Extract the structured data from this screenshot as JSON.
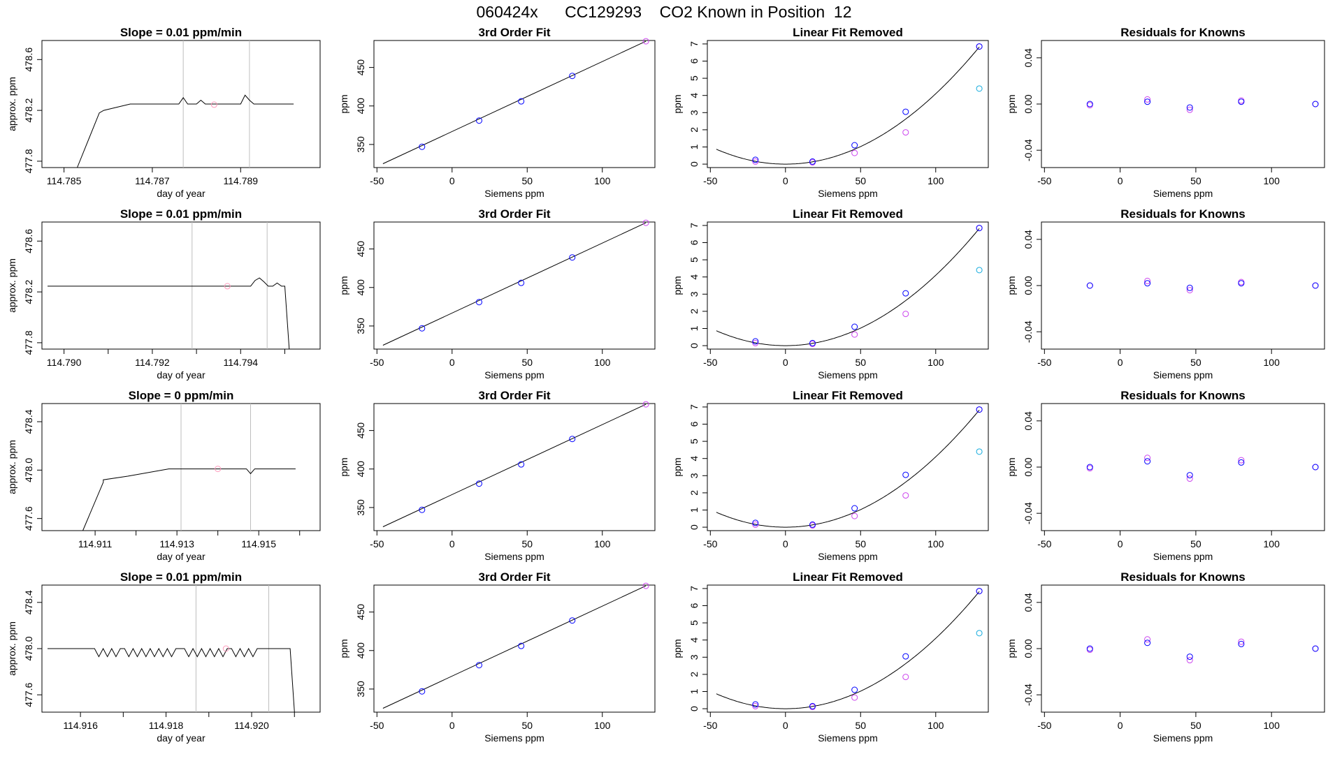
{
  "figure": {
    "title": "060424x      CC129293    CO2 Known in Position  12"
  },
  "colors": {
    "axes": "#000000",
    "trace": "#000000",
    "vline": "#bebebe",
    "blue": "#0000ff",
    "magenta": "#cc44ee",
    "cyan": "#11aadd",
    "pink": "#ff99bb"
  },
  "chart_data": [
    {
      "type": "line",
      "row": 0,
      "title": "Slope =  0.01  ppm/min",
      "xlabel": "day of year",
      "ylabel": "approx. ppm",
      "xlim": [
        114.7845,
        114.7908
      ],
      "ylim": [
        477.75,
        478.75
      ],
      "xticks": [
        114.785,
        114.787,
        114.789
      ],
      "xtick_labels": [
        "114.785",
        "114.787",
        "114.789"
      ],
      "yticks": [
        477.8,
        478.2,
        478.6
      ],
      "ytick_labels": [
        "477.8",
        "478.2",
        "478.6"
      ],
      "vlines": [
        114.7877,
        114.7892
      ],
      "marker_point": [
        114.7884,
        478.245
      ],
      "baseline": 478.25,
      "rise": {
        "start": 114.7853,
        "start_y": 477.75,
        "end": 114.7858,
        "end_y": 478.18
      },
      "steps": [
        [
          114.7858,
          478.18
        ],
        [
          114.7859,
          478.2
        ],
        [
          114.7865,
          478.25
        ]
      ],
      "spikes": [
        [
          114.7862,
          478.27
        ],
        [
          114.7864,
          478.28
        ],
        [
          114.7877,
          478.3
        ],
        [
          114.7881,
          478.28
        ],
        [
          114.7891,
          478.32
        ],
        [
          114.7892,
          478.28
        ]
      ],
      "end": 114.7903
    },
    {
      "type": "line",
      "row": 1,
      "title": "Slope =  0.01  ppm/min",
      "xlabel": "day of year",
      "ylabel": "approx. ppm",
      "xlim": [
        114.7895,
        114.7958
      ],
      "ylim": [
        477.75,
        478.75
      ],
      "xticks": [
        114.79,
        114.791,
        114.792,
        114.793,
        114.794,
        114.795
      ],
      "xtick_labels": [
        "114.790",
        "",
        "114.792",
        "",
        "114.794",
        ""
      ],
      "yticks": [
        477.8,
        478.2,
        478.6
      ],
      "ytick_labels": [
        "477.8",
        "478.2",
        "478.6"
      ],
      "vlines": [
        114.7929,
        114.7946
      ],
      "marker_point": [
        114.7937,
        478.245
      ],
      "baseline": 478.245,
      "rise": null,
      "steps": [],
      "spikes": [
        [
          114.7943,
          478.29
        ],
        [
          114.7944,
          478.31
        ],
        [
          114.7945,
          478.28
        ],
        [
          114.7948,
          478.27
        ]
      ],
      "end": 114.795,
      "drop": {
        "x": 114.7951,
        "y": 477.75
      }
    },
    {
      "type": "line",
      "row": 2,
      "title": "Slope =  0  ppm/min",
      "xlabel": "day of year",
      "ylabel": "approx. ppm",
      "xlim": [
        114.9097,
        114.9165
      ],
      "ylim": [
        477.5,
        478.55
      ],
      "xticks": [
        114.911,
        114.912,
        114.913,
        114.914,
        114.915,
        114.916
      ],
      "xtick_labels": [
        "114.911",
        "",
        "114.913",
        "",
        "114.915",
        ""
      ],
      "yticks": [
        477.6,
        478.0,
        478.4
      ],
      "ytick_labels": [
        "477.6",
        "478.0",
        "478.4"
      ],
      "vlines": [
        114.9131,
        114.9148
      ],
      "marker_point": [
        114.914,
        478.01
      ],
      "baseline": 478.01,
      "rise": {
        "start": 114.9107,
        "start_y": 477.5,
        "end": 114.9112,
        "end_y": 477.9
      },
      "steps": [
        [
          114.9112,
          477.92
        ],
        [
          114.9118,
          477.95
        ],
        [
          114.9128,
          478.01
        ]
      ],
      "spikes": [
        [
          114.912,
          478.01
        ],
        [
          114.9123,
          477.98
        ],
        [
          114.9125,
          478.0
        ],
        [
          114.9127,
          477.98
        ],
        [
          114.9148,
          477.97
        ]
      ],
      "end": 114.916
    },
    {
      "type": "line",
      "row": 3,
      "title": "Slope =  0.01  ppm/min",
      "xlabel": "day of year",
      "ylabel": "approx. ppm",
      "xlim": [
        114.9151,
        114.9216
      ],
      "ylim": [
        477.45,
        478.55
      ],
      "xticks": [
        114.916,
        114.917,
        114.918,
        114.919,
        114.92,
        114.921
      ],
      "xtick_labels": [
        "114.916",
        "",
        "114.918",
        "",
        "114.920",
        ""
      ],
      "yticks": [
        477.6,
        478.0,
        478.4
      ],
      "ytick_labels": [
        "477.6",
        "478.0",
        "478.4"
      ],
      "vlines": [
        114.9187,
        114.9204
      ],
      "marker_point": [
        114.9194,
        478.0
      ],
      "baseline": 478.0,
      "rise": null,
      "steps": [],
      "dips": [
        114.9164,
        114.9166,
        114.9168,
        114.9171,
        114.9173,
        114.9175,
        114.9177,
        114.9179,
        114.9181,
        114.9185,
        114.9187,
        114.9189,
        114.9191,
        114.9193,
        114.9196,
        114.9198,
        114.92
      ],
      "dip_depth": 477.93,
      "spikes": [],
      "end": 114.9208,
      "drop": {
        "x": 114.921,
        "y": 477.45
      }
    }
  ],
  "fit_data": {
    "type": "scatter",
    "title": "3rd Order Fit",
    "xlabel": "Siemens ppm",
    "ylabel": "ppm",
    "xlim": [
      -52,
      135
    ],
    "ylim": [
      320,
      485
    ],
    "xticks": [
      -50,
      0,
      50,
      100
    ],
    "xtick_labels": [
      "-50",
      "0",
      "50",
      "100"
    ],
    "yticks": [
      350,
      400,
      450
    ],
    "ytick_labels": [
      "350",
      "400",
      "450"
    ],
    "points_x": [
      -20,
      18,
      46,
      80,
      129
    ],
    "points_y": [
      347,
      381,
      406,
      439,
      484
    ],
    "line": [
      [
        -46,
        325
      ],
      [
        129,
        484
      ]
    ]
  },
  "linfit_data": {
    "type": "scatter",
    "title": "Linear Fit Removed",
    "xlabel": "Siemens ppm",
    "ylabel": "ppm",
    "xlim": [
      -52,
      135
    ],
    "ylim": [
      -0.2,
      7.2
    ],
    "xticks": [
      -50,
      0,
      50,
      100
    ],
    "xtick_labels": [
      "-50",
      "0",
      "50",
      "100"
    ],
    "yticks": [
      0,
      1,
      2,
      3,
      4,
      5,
      6,
      7
    ],
    "ytick_labels": [
      "0",
      "1",
      "2",
      "3",
      "4",
      "5",
      "6",
      "7"
    ],
    "blue_x": [
      -20,
      18,
      46,
      80,
      129
    ],
    "blue_y": [
      0.25,
      0.15,
      1.1,
      3.05,
      6.85
    ],
    "magenta_x": [
      -20,
      18,
      46,
      80,
      129
    ],
    "magenta_y": [
      0.15,
      0.1,
      0.65,
      1.85,
      6.85
    ],
    "cyan_x": [
      129
    ],
    "cyan_y": [
      4.4
    ],
    "curve_coef": 0.00041
  },
  "resid_data": {
    "type": "scatter",
    "title": "Residuals for Knowns",
    "xlabel": "Siemens ppm",
    "ylabel": "ppm",
    "xlim": [
      -52,
      135
    ],
    "ylim": [
      -0.055,
      0.055
    ],
    "xticks": [
      -50,
      0,
      50,
      100
    ],
    "xtick_labels": [
      "-50",
      "0",
      "50",
      "100"
    ],
    "yticks": [
      -0.04,
      0.0,
      0.04
    ],
    "ytick_labels": [
      "-0.04",
      "0.00",
      "0.04"
    ],
    "rows": [
      {
        "x": [
          -20,
          18,
          46,
          80,
          129
        ],
        "blue": [
          0.0,
          0.002,
          -0.003,
          0.002,
          0.0
        ],
        "magenta": [
          -0.001,
          0.004,
          -0.005,
          0.003,
          0.0
        ]
      },
      {
        "x": [
          -20,
          18,
          46,
          80,
          129
        ],
        "blue": [
          0.0,
          0.002,
          -0.002,
          0.002,
          0.0
        ],
        "magenta": [
          0.0,
          0.004,
          -0.004,
          0.003,
          0.0
        ]
      },
      {
        "x": [
          -20,
          18,
          46,
          80,
          129
        ],
        "blue": [
          0.0,
          0.005,
          -0.007,
          0.004,
          0.0
        ],
        "magenta": [
          -0.001,
          0.008,
          -0.01,
          0.006,
          0.0
        ]
      },
      {
        "x": [
          -20,
          18,
          46,
          80,
          129
        ],
        "blue": [
          0.0,
          0.005,
          -0.007,
          0.004,
          0.0
        ],
        "magenta": [
          -0.001,
          0.008,
          -0.01,
          0.006,
          0.0
        ]
      }
    ]
  }
}
